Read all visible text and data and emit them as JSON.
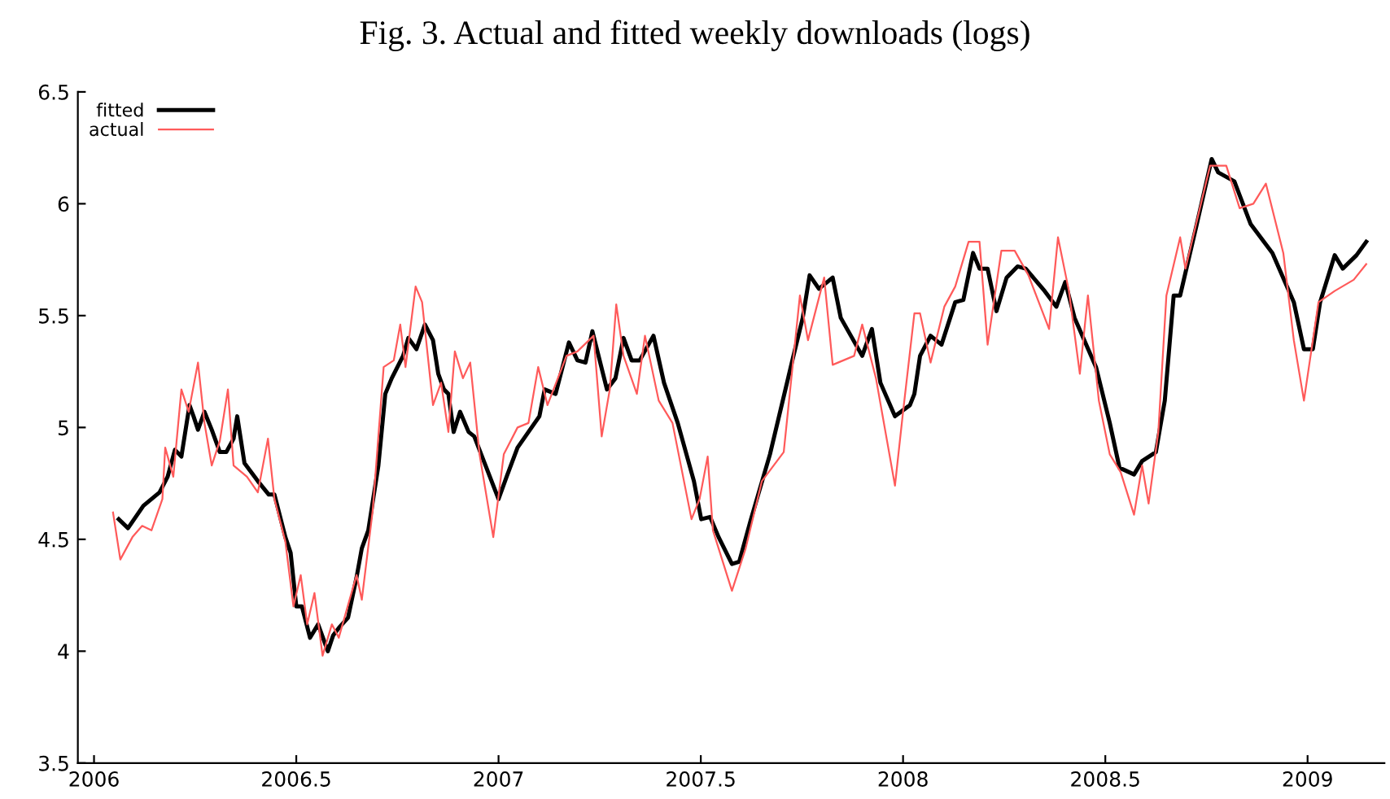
{
  "chart_data": {
    "type": "line",
    "title": "Fig. 3. Actual and fitted weekly downloads (logs)",
    "xlim": [
      2005.96,
      2009.19
    ],
    "xticks": [
      2006,
      2006.5,
      2007,
      2007.5,
      2008,
      2008.5,
      2009
    ],
    "ylim": [
      3.5,
      6.5
    ],
    "yticks": [
      3.5,
      4,
      4.5,
      5,
      5.5,
      6,
      6.5
    ],
    "grid": false,
    "legend": "top left",
    "marker": "none",
    "line_style": "solid",
    "series": [
      {
        "name": "fitted",
        "color": "#000000",
        "x": [
          2006.061,
          2006.084,
          2006.122,
          2006.162,
          2006.182,
          2006.2,
          2006.216,
          2006.236,
          2006.246,
          2006.257,
          2006.273,
          2006.291,
          2006.311,
          2006.327,
          2006.345,
          2006.354,
          2006.372,
          2006.405,
          2006.432,
          2006.446,
          2006.473,
          2006.486,
          2006.5,
          2006.514,
          2006.534,
          2006.554,
          2006.578,
          2006.591,
          2006.608,
          2006.628,
          2006.649,
          2006.662,
          2006.678,
          2006.703,
          2006.72,
          2006.736,
          2006.764,
          2006.777,
          2006.797,
          2006.818,
          2006.838,
          2006.851,
          2006.865,
          2006.876,
          2006.889,
          2006.905,
          2006.926,
          2006.94,
          2007.0,
          2007.02,
          2007.047,
          2007.101,
          2007.114,
          2007.141,
          2007.174,
          2007.195,
          2007.215,
          2007.232,
          2007.268,
          2007.289,
          2007.309,
          2007.329,
          2007.349,
          2007.383,
          2007.409,
          2007.443,
          2007.483,
          2007.501,
          2007.523,
          2007.544,
          2007.577,
          2007.595,
          2007.624,
          2007.671,
          2007.725,
          2007.752,
          2007.769,
          2007.792,
          2007.826,
          2007.846,
          2007.899,
          2007.923,
          2007.944,
          2007.98,
          2008.017,
          2008.028,
          2008.042,
          2008.068,
          2008.095,
          2008.129,
          2008.149,
          2008.173,
          2008.189,
          2008.209,
          2008.231,
          2008.256,
          2008.283,
          2008.303,
          2008.35,
          2008.379,
          2008.401,
          2008.424,
          2008.477,
          2008.511,
          2008.535,
          2008.571,
          2008.591,
          2008.625,
          2008.647,
          2008.669,
          2008.685,
          2008.725,
          2008.763,
          2008.779,
          2008.819,
          2008.859,
          2008.913,
          2008.966,
          2008.991,
          2009.013,
          2009.031,
          2009.067,
          2009.087,
          2009.121,
          2009.145
        ],
        "values": [
          4.59,
          4.55,
          4.65,
          4.71,
          4.78,
          4.9,
          4.87,
          5.1,
          5.05,
          4.99,
          5.07,
          4.99,
          4.89,
          4.89,
          4.95,
          5.05,
          4.84,
          4.76,
          4.7,
          4.7,
          4.51,
          4.44,
          4.2,
          4.2,
          4.06,
          4.12,
          4.0,
          4.07,
          4.11,
          4.15,
          4.33,
          4.46,
          4.54,
          4.83,
          5.15,
          5.22,
          5.32,
          5.4,
          5.35,
          5.46,
          5.39,
          5.24,
          5.17,
          5.15,
          4.98,
          5.07,
          4.98,
          4.96,
          4.68,
          4.78,
          4.91,
          5.05,
          5.17,
          5.15,
          5.38,
          5.3,
          5.29,
          5.43,
          5.17,
          5.22,
          5.4,
          5.3,
          5.3,
          5.41,
          5.2,
          5.02,
          4.76,
          4.59,
          4.6,
          4.51,
          4.39,
          4.4,
          4.59,
          4.88,
          5.29,
          5.49,
          5.68,
          5.62,
          5.67,
          5.49,
          5.32,
          5.44,
          5.2,
          5.05,
          5.1,
          5.15,
          5.32,
          5.41,
          5.37,
          5.56,
          5.57,
          5.78,
          5.71,
          5.71,
          5.52,
          5.67,
          5.72,
          5.71,
          5.61,
          5.54,
          5.65,
          5.49,
          5.27,
          5.02,
          4.82,
          4.79,
          4.85,
          4.89,
          5.12,
          5.59,
          5.59,
          5.9,
          6.2,
          6.14,
          6.1,
          5.91,
          5.78,
          5.56,
          5.35,
          5.35,
          5.56,
          5.77,
          5.71,
          5.77,
          5.83
        ]
      },
      {
        "name": "actual",
        "color": "#ff5a5a",
        "x": [
          2006.047,
          2006.065,
          2006.095,
          2006.119,
          2006.142,
          2006.169,
          2006.176,
          2006.196,
          2006.216,
          2006.234,
          2006.257,
          2006.273,
          2006.291,
          2006.311,
          2006.331,
          2006.345,
          2006.378,
          2006.405,
          2006.43,
          2006.446,
          2006.473,
          2006.493,
          2006.511,
          2006.527,
          2006.545,
          2006.565,
          2006.588,
          2006.605,
          2006.649,
          2006.662,
          2006.689,
          2006.716,
          2006.741,
          2006.757,
          2006.77,
          2006.795,
          2006.811,
          2006.838,
          2006.858,
          2006.876,
          2006.892,
          2006.912,
          2006.93,
          2006.953,
          2006.987,
          2007.013,
          2007.047,
          2007.074,
          2007.098,
          2007.121,
          2007.168,
          2007.195,
          2007.235,
          2007.255,
          2007.275,
          2007.291,
          2007.309,
          2007.342,
          2007.362,
          2007.396,
          2007.43,
          2007.477,
          2007.497,
          2007.517,
          2007.53,
          2007.577,
          2007.611,
          2007.651,
          2007.705,
          2007.745,
          2007.765,
          2007.805,
          2007.826,
          2007.879,
          2007.899,
          2007.933,
          2007.98,
          2008.0,
          2008.028,
          2008.042,
          2008.068,
          2008.102,
          2008.129,
          2008.162,
          2008.189,
          2008.209,
          2008.243,
          2008.276,
          2008.31,
          2008.361,
          2008.383,
          2008.41,
          2008.437,
          2008.457,
          2008.484,
          2008.511,
          2008.538,
          2008.571,
          2008.591,
          2008.607,
          2008.631,
          2008.651,
          2008.685,
          2008.698,
          2008.739,
          2008.759,
          2008.799,
          2008.832,
          2008.866,
          2008.897,
          2008.94,
          2008.966,
          2008.991,
          2009.027,
          2009.067,
          2009.114,
          2009.145
        ],
        "values": [
          4.62,
          4.41,
          4.51,
          4.56,
          4.54,
          4.68,
          4.91,
          4.78,
          5.17,
          5.07,
          5.29,
          5.02,
          4.83,
          4.94,
          5.17,
          4.83,
          4.78,
          4.71,
          4.95,
          4.68,
          4.49,
          4.2,
          4.34,
          4.12,
          4.26,
          3.98,
          4.12,
          4.06,
          4.34,
          4.23,
          4.63,
          5.27,
          5.3,
          5.46,
          5.27,
          5.63,
          5.56,
          5.1,
          5.2,
          4.98,
          5.34,
          5.22,
          5.29,
          4.88,
          4.51,
          4.88,
          5.0,
          5.02,
          5.27,
          5.1,
          5.32,
          5.34,
          5.41,
          4.96,
          5.17,
          5.55,
          5.32,
          5.15,
          5.41,
          5.12,
          5.02,
          4.59,
          4.68,
          4.87,
          4.54,
          4.27,
          4.46,
          4.76,
          4.89,
          5.59,
          5.39,
          5.67,
          5.28,
          5.32,
          5.46,
          5.22,
          4.74,
          5.07,
          5.51,
          5.51,
          5.29,
          5.54,
          5.63,
          5.83,
          5.83,
          5.37,
          5.79,
          5.79,
          5.68,
          5.44,
          5.85,
          5.61,
          5.24,
          5.59,
          5.12,
          4.88,
          4.8,
          4.61,
          4.83,
          4.66,
          4.98,
          5.59,
          5.85,
          5.71,
          6.02,
          6.17,
          6.17,
          5.98,
          6.0,
          6.09,
          5.78,
          5.39,
          5.12,
          5.56,
          5.61,
          5.66,
          5.73
        ]
      }
    ]
  }
}
